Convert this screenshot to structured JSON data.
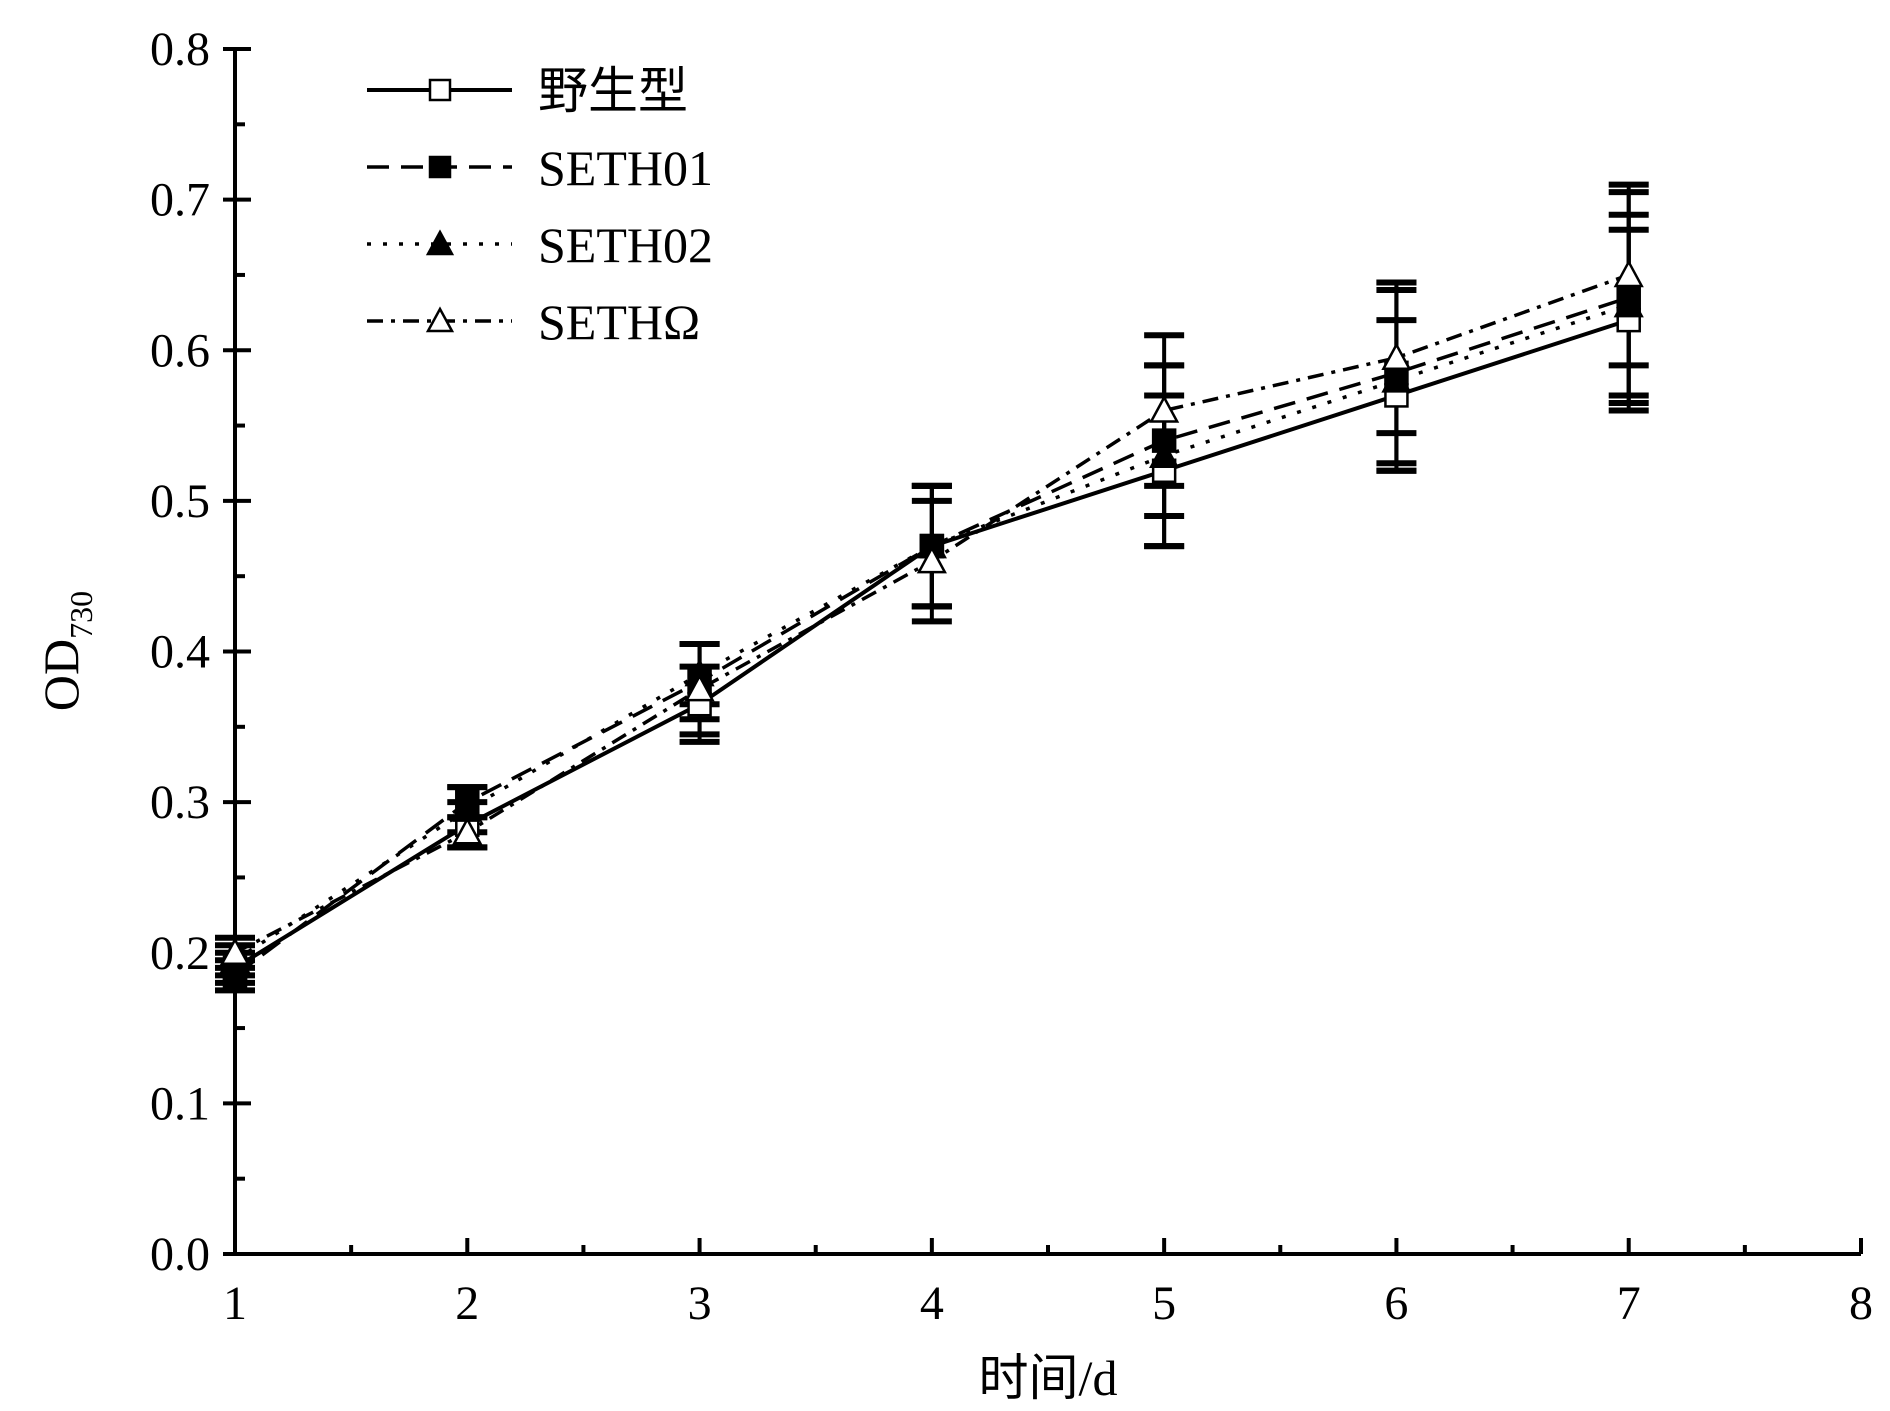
{
  "chart_data": {
    "type": "line",
    "title": "",
    "xlabel": "时间/d",
    "ylabel_main": "OD",
    "ylabel_sub": "730",
    "xlim": [
      1,
      8
    ],
    "ylim": [
      0,
      0.8
    ],
    "x_ticks": [
      "1",
      "2",
      "3",
      "4",
      "5",
      "6",
      "7",
      "8"
    ],
    "y_ticks": [
      "0.0",
      "0.1",
      "0.2",
      "0.3",
      "0.4",
      "0.5",
      "0.6",
      "0.7",
      "0.8"
    ],
    "grid": false,
    "legend_position": "top-left",
    "x": [
      1,
      2,
      3,
      4,
      5,
      6,
      7
    ],
    "series": [
      {
        "name": "野生型",
        "marker": "open-square",
        "line": "solid",
        "values": [
          0.19,
          0.285,
          0.365,
          0.47,
          0.52,
          0.57,
          0.62
        ],
        "errors": [
          0.01,
          0.015,
          0.025,
          0.04,
          0.05,
          0.05,
          0.06
        ]
      },
      {
        "name": "SETH01",
        "marker": "filled-square",
        "line": "dash",
        "values": [
          0.185,
          0.3,
          0.38,
          0.47,
          0.54,
          0.585,
          0.635
        ],
        "errors": [
          0.01,
          0.01,
          0.025,
          0.04,
          0.05,
          0.06,
          0.07
        ]
      },
      {
        "name": "SETH02",
        "marker": "filled-triangle",
        "line": "dot",
        "values": [
          0.195,
          0.295,
          0.385,
          0.47,
          0.53,
          0.58,
          0.63
        ],
        "errors": [
          0.01,
          0.015,
          0.02,
          0.04,
          0.06,
          0.06,
          0.06
        ]
      },
      {
        "name": "SETHΩ",
        "marker": "open-triangle",
        "line": "dashdot",
        "values": [
          0.2,
          0.28,
          0.375,
          0.46,
          0.56,
          0.595,
          0.65
        ],
        "errors": [
          0.01,
          0.01,
          0.03,
          0.04,
          0.05,
          0.05,
          0.06
        ]
      }
    ]
  }
}
